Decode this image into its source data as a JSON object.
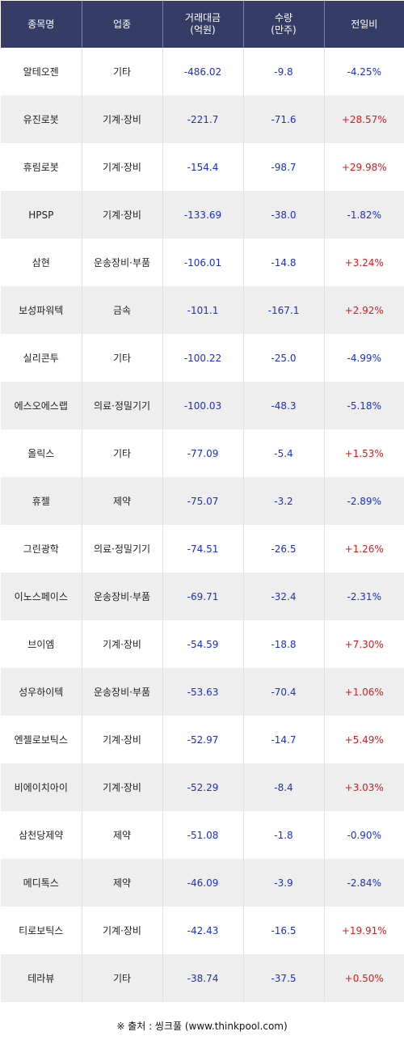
{
  "headers": {
    "name": "종목명",
    "sector": "업종",
    "amount": "거래대금\n(억원)",
    "volume": "수량\n(만주)",
    "change": "전일비"
  },
  "rows": [
    {
      "name": "알테오젠",
      "sector": "기타",
      "amount": "-486.02",
      "volume": "-9.8",
      "change": "-4.25%",
      "dir": "down"
    },
    {
      "name": "유진로봇",
      "sector": "기계·장비",
      "amount": "-221.7",
      "volume": "-71.6",
      "change": "+28.57%",
      "dir": "up"
    },
    {
      "name": "휴림로봇",
      "sector": "기계·장비",
      "amount": "-154.4",
      "volume": "-98.7",
      "change": "+29.98%",
      "dir": "up"
    },
    {
      "name": "HPSP",
      "sector": "기계·장비",
      "amount": "-133.69",
      "volume": "-38.0",
      "change": "-1.82%",
      "dir": "down"
    },
    {
      "name": "삼현",
      "sector": "운송장비·부품",
      "amount": "-106.01",
      "volume": "-14.8",
      "change": "+3.24%",
      "dir": "up"
    },
    {
      "name": "보성파워텍",
      "sector": "금속",
      "amount": "-101.1",
      "volume": "-167.1",
      "change": "+2.92%",
      "dir": "up"
    },
    {
      "name": "실리콘투",
      "sector": "기타",
      "amount": "-100.22",
      "volume": "-25.0",
      "change": "-4.99%",
      "dir": "down"
    },
    {
      "name": "에스오에스랩",
      "sector": "의료·정밀기기",
      "amount": "-100.03",
      "volume": "-48.3",
      "change": "-5.18%",
      "dir": "down"
    },
    {
      "name": "올릭스",
      "sector": "기타",
      "amount": "-77.09",
      "volume": "-5.4",
      "change": "+1.53%",
      "dir": "up"
    },
    {
      "name": "휴젤",
      "sector": "제약",
      "amount": "-75.07",
      "volume": "-3.2",
      "change": "-2.89%",
      "dir": "down"
    },
    {
      "name": "그린광학",
      "sector": "의료·정밀기기",
      "amount": "-74.51",
      "volume": "-26.5",
      "change": "+1.26%",
      "dir": "up"
    },
    {
      "name": "이노스페이스",
      "sector": "운송장비·부품",
      "amount": "-69.71",
      "volume": "-32.4",
      "change": "-2.31%",
      "dir": "down"
    },
    {
      "name": "브이엠",
      "sector": "기계·장비",
      "amount": "-54.59",
      "volume": "-18.8",
      "change": "+7.30%",
      "dir": "up"
    },
    {
      "name": "성우하이텍",
      "sector": "운송장비·부품",
      "amount": "-53.63",
      "volume": "-70.4",
      "change": "+1.06%",
      "dir": "up"
    },
    {
      "name": "엔젤로보틱스",
      "sector": "기계·장비",
      "amount": "-52.97",
      "volume": "-14.7",
      "change": "+5.49%",
      "dir": "up"
    },
    {
      "name": "비에이치아이",
      "sector": "기계·장비",
      "amount": "-52.29",
      "volume": "-8.4",
      "change": "+3.03%",
      "dir": "up"
    },
    {
      "name": "삼천당제약",
      "sector": "제약",
      "amount": "-51.08",
      "volume": "-1.8",
      "change": "-0.90%",
      "dir": "down"
    },
    {
      "name": "메디톡스",
      "sector": "제약",
      "amount": "-46.09",
      "volume": "-3.9",
      "change": "-2.84%",
      "dir": "down"
    },
    {
      "name": "티로보틱스",
      "sector": "기계·장비",
      "amount": "-42.43",
      "volume": "-16.5",
      "change": "+19.91%",
      "dir": "up"
    },
    {
      "name": "테라뷰",
      "sector": "기타",
      "amount": "-38.74",
      "volume": "-37.5",
      "change": "+0.50%",
      "dir": "up"
    }
  ],
  "source": "※ 출처 : 씽크풀 (www.thinkpool.com)",
  "colors": {
    "header_bg": "#353c65",
    "header_text": "#ffffff",
    "row_alt_bg": "#eeeeee",
    "up": "#e01818",
    "down": "#1a2fd0"
  }
}
